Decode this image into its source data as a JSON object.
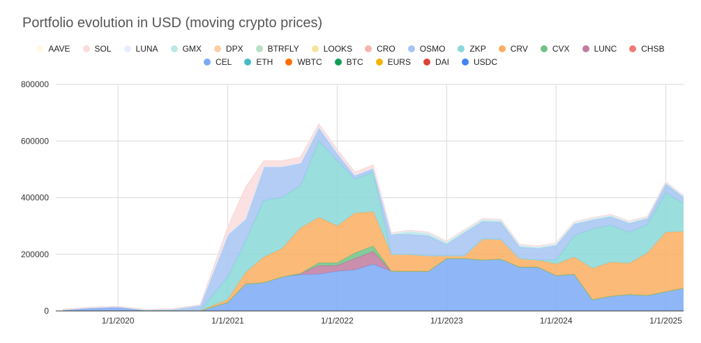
{
  "chart_data": {
    "type": "area",
    "stacked": true,
    "title": "Portfolio evolution in USD (moving crypto prices)",
    "xlabel": "",
    "ylabel": "",
    "x": [
      "2019-07-01",
      "2019-10-01",
      "2020-01-01",
      "2020-04-01",
      "2020-07-01",
      "2020-10-01",
      "2021-01-01",
      "2021-03-01",
      "2021-05-01",
      "2021-07-01",
      "2021-09-01",
      "2021-11-01",
      "2022-01-01",
      "2022-03-01",
      "2022-05-01",
      "2022-07-01",
      "2022-09-01",
      "2022-11-01",
      "2023-01-01",
      "2023-03-01",
      "2023-05-01",
      "2023-07-01",
      "2023-09-01",
      "2023-11-01",
      "2024-01-01",
      "2024-03-01",
      "2024-05-01",
      "2024-07-01",
      "2024-09-01",
      "2024-11-01",
      "2025-01-01",
      "2025-03-01"
    ],
    "ylim": [
      0,
      800000
    ],
    "yticks": [
      0,
      200000,
      400000,
      600000,
      800000
    ],
    "y_tick_labels": [
      "0",
      "200000",
      "400000",
      "600000",
      "800000"
    ],
    "x_tick_labels": [
      "1/1/2020",
      "1/1/2021",
      "1/1/2022",
      "1/1/2023",
      "1/1/2024",
      "1/1/2025"
    ],
    "grid": true,
    "legend_position": "top",
    "series": [
      {
        "name": "USDC",
        "color": "#4285f4",
        "values": [
          0,
          0,
          0,
          0,
          0,
          0,
          0,
          0,
          0,
          0,
          0,
          0,
          0,
          0,
          0,
          0,
          0,
          0,
          0,
          0,
          0,
          0,
          0,
          0,
          0,
          0,
          0,
          0,
          0,
          0,
          0,
          0
        ]
      },
      {
        "name": "DAI",
        "color": "#db4437",
        "values": [
          0,
          0,
          0,
          0,
          0,
          0,
          0,
          0,
          0,
          0,
          0,
          0,
          0,
          0,
          0,
          0,
          0,
          0,
          0,
          0,
          0,
          0,
          0,
          0,
          0,
          0,
          0,
          0,
          0,
          0,
          0,
          0
        ]
      },
      {
        "name": "EURS",
        "color": "#f4b400",
        "values": [
          0,
          0,
          0,
          0,
          0,
          0,
          0,
          0,
          0,
          0,
          0,
          0,
          0,
          0,
          0,
          0,
          0,
          0,
          0,
          0,
          0,
          0,
          0,
          0,
          0,
          0,
          0,
          0,
          0,
          0,
          0,
          0
        ]
      },
      {
        "name": "BTC",
        "color": "#0f9d58",
        "values": [
          0,
          0,
          0,
          0,
          0,
          0,
          0,
          0,
          0,
          0,
          0,
          0,
          0,
          0,
          0,
          0,
          0,
          0,
          0,
          0,
          0,
          0,
          0,
          0,
          0,
          0,
          0,
          0,
          0,
          0,
          0,
          0
        ]
      },
      {
        "name": "WBTC",
        "color": "#ff6d01",
        "values": [
          0,
          0,
          0,
          0,
          0,
          0,
          0,
          0,
          0,
          0,
          0,
          0,
          0,
          0,
          0,
          0,
          0,
          0,
          0,
          0,
          0,
          0,
          0,
          0,
          0,
          0,
          0,
          0,
          0,
          0,
          0,
          0
        ]
      },
      {
        "name": "ETH",
        "color": "#46bdc6",
        "values": [
          0,
          0,
          0,
          0,
          0,
          0,
          0,
          0,
          0,
          0,
          0,
          0,
          0,
          0,
          0,
          0,
          0,
          0,
          0,
          0,
          0,
          0,
          0,
          0,
          0,
          0,
          0,
          0,
          0,
          0,
          0,
          0
        ]
      },
      {
        "name": "CEL",
        "color": "#7baaf7",
        "values": [
          5000,
          12000,
          15000,
          3000,
          2000,
          1000,
          30000,
          95000,
          100000,
          120000,
          128000,
          130000,
          140000,
          145000,
          165000,
          140000,
          140000,
          140000,
          185000,
          185000,
          180000,
          183000,
          155000,
          155000,
          125000,
          130000,
          40000,
          52000,
          58000,
          55000,
          68000,
          80000
        ]
      },
      {
        "name": "CHSB",
        "color": "#f07b72",
        "values": [
          0,
          0,
          0,
          0,
          0,
          0,
          0,
          0,
          0,
          0,
          0,
          0,
          0,
          0,
          0,
          0,
          0,
          0,
          0,
          0,
          0,
          0,
          0,
          0,
          0,
          0,
          0,
          0,
          0,
          0,
          0,
          0
        ]
      },
      {
        "name": "LUNC",
        "color": "#c27ba0",
        "values": [
          0,
          0,
          0,
          0,
          0,
          0,
          0,
          0,
          0,
          0,
          5000,
          30000,
          20000,
          40000,
          45000,
          0,
          0,
          0,
          0,
          0,
          0,
          0,
          0,
          0,
          0,
          0,
          0,
          0,
          0,
          0,
          0,
          0
        ]
      },
      {
        "name": "CVX",
        "color": "#71c287",
        "values": [
          0,
          0,
          0,
          0,
          0,
          0,
          0,
          0,
          0,
          0,
          0,
          10000,
          10000,
          20000,
          20000,
          0,
          0,
          0,
          0,
          0,
          0,
          0,
          0,
          0,
          0,
          0,
          0,
          0,
          0,
          0,
          0,
          0
        ]
      },
      {
        "name": "CRV",
        "color": "#fcae61",
        "values": [
          0,
          0,
          0,
          0,
          0,
          0,
          10000,
          40000,
          90000,
          100000,
          160000,
          160000,
          130000,
          140000,
          120000,
          60000,
          60000,
          55000,
          10000,
          10000,
          75000,
          70000,
          30000,
          25000,
          40000,
          60000,
          110000,
          120000,
          110000,
          150000,
          210000,
          200000
        ]
      },
      {
        "name": "ZKP",
        "color": "#8ad8d8",
        "values": [
          0,
          0,
          0,
          0,
          0,
          0,
          80000,
          110000,
          200000,
          180000,
          150000,
          270000,
          230000,
          120000,
          140000,
          0,
          0,
          0,
          0,
          0,
          0,
          0,
          0,
          0,
          15000,
          75000,
          140000,
          130000,
          110000,
          100000,
          140000,
          100000
        ]
      },
      {
        "name": "OSMO",
        "color": "#a6c4f2",
        "values": [
          0,
          0,
          0,
          2000,
          5000,
          20000,
          150000,
          80000,
          120000,
          110000,
          80000,
          50000,
          30000,
          15000,
          15000,
          70000,
          70000,
          70000,
          40000,
          80000,
          60000,
          60000,
          40000,
          40000,
          50000,
          40000,
          30000,
          30000,
          30000,
          20000,
          30000,
          20000
        ]
      },
      {
        "name": "CRO",
        "color": "#f6b4ae",
        "values": [
          0,
          0,
          0,
          0,
          0,
          0,
          0,
          0,
          0,
          0,
          0,
          0,
          0,
          0,
          0,
          0,
          0,
          0,
          0,
          0,
          0,
          0,
          0,
          0,
          0,
          0,
          0,
          0,
          0,
          0,
          0,
          0
        ]
      },
      {
        "name": "LOOKS",
        "color": "#f7e49b",
        "values": [
          0,
          0,
          0,
          0,
          0,
          0,
          0,
          0,
          0,
          0,
          0,
          0,
          0,
          0,
          0,
          0,
          0,
          0,
          0,
          0,
          0,
          0,
          0,
          0,
          0,
          0,
          0,
          0,
          0,
          0,
          0,
          0
        ]
      },
      {
        "name": "BTRFLY",
        "color": "#b7e0c4",
        "values": [
          0,
          0,
          0,
          0,
          0,
          0,
          0,
          0,
          0,
          0,
          0,
          0,
          0,
          0,
          0,
          0,
          0,
          0,
          0,
          0,
          0,
          0,
          0,
          0,
          0,
          0,
          0,
          0,
          0,
          0,
          0,
          0
        ]
      },
      {
        "name": "DPX",
        "color": "#fcd0a4",
        "values": [
          0,
          0,
          0,
          0,
          0,
          0,
          0,
          0,
          0,
          0,
          0,
          0,
          0,
          0,
          0,
          0,
          0,
          0,
          0,
          0,
          0,
          0,
          0,
          0,
          0,
          0,
          0,
          0,
          0,
          0,
          0,
          0
        ]
      },
      {
        "name": "GMX",
        "color": "#bde8e8",
        "values": [
          0,
          0,
          0,
          0,
          0,
          0,
          0,
          0,
          0,
          0,
          0,
          0,
          0,
          0,
          0,
          0,
          10000,
          8000,
          6000,
          6000,
          6000,
          5000,
          5000,
          4000,
          4000,
          4000,
          4000,
          4000,
          4000,
          4000,
          3000,
          3000
        ]
      },
      {
        "name": "LUNA",
        "color": "#e6eefc",
        "values": [
          0,
          0,
          0,
          0,
          0,
          0,
          0,
          0,
          0,
          0,
          0,
          0,
          0,
          0,
          0,
          5000,
          5000,
          5000,
          5000,
          5000,
          5000,
          5000,
          5000,
          5000,
          5000,
          5000,
          5000,
          5000,
          5000,
          5000,
          5000,
          4000
        ]
      },
      {
        "name": "SOL",
        "color": "#fadcdc",
        "values": [
          0,
          0,
          0,
          0,
          0,
          0,
          25000,
          110000,
          20000,
          20000,
          20000,
          10000,
          10000,
          10000,
          10000,
          0,
          0,
          0,
          0,
          0,
          0,
          0,
          0,
          0,
          0,
          0,
          0,
          0,
          0,
          0,
          0,
          0
        ]
      },
      {
        "name": "AAVE",
        "color": "#fff9e3",
        "values": [
          0,
          0,
          0,
          0,
          0,
          0,
          0,
          0,
          0,
          0,
          0,
          0,
          0,
          0,
          0,
          0,
          0,
          0,
          0,
          0,
          0,
          0,
          0,
          0,
          0,
          0,
          0,
          0,
          0,
          0,
          0,
          0
        ]
      }
    ],
    "legend": [
      [
        "AAVE",
        "SOL",
        "LUNA",
        "GMX",
        "DPX",
        "BTRFLY",
        "LOOKS",
        "CRO",
        "OSMO",
        "ZKP",
        "CRV",
        "CVX",
        "LUNC",
        "CHSB"
      ],
      [
        "CEL",
        "ETH",
        "WBTC",
        "BTC",
        "EURS",
        "DAI",
        "USDC"
      ]
    ]
  }
}
